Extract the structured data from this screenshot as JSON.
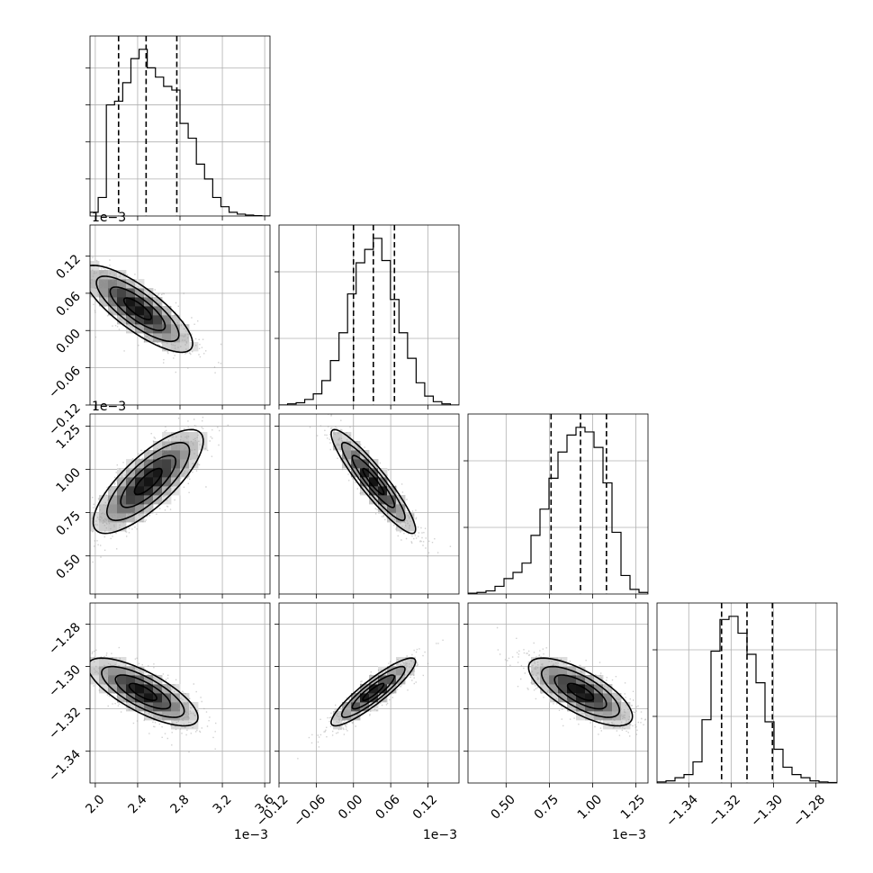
{
  "chart_data": {
    "type": "corner",
    "title": "",
    "grid": true,
    "parameters": [
      {
        "name": "",
        "range": [
          1.95,
          3.65
        ],
        "ticks": [
          2.0,
          2.4,
          2.8,
          3.2,
          3.6
        ],
        "tick_labels": [
          "2.0",
          "2.4",
          "2.8",
          "3.2",
          "3.6"
        ],
        "offset_text": "1e−3",
        "quantiles": [
          2.22,
          2.48,
          2.77
        ],
        "hist_counts": [
          2,
          10,
          60,
          62,
          72,
          85,
          90,
          80,
          75,
          70,
          68,
          50,
          42,
          28,
          20,
          10,
          5,
          2,
          1,
          0.5,
          0.2,
          0
        ]
      },
      {
        "name": "",
        "range": [
          -0.12,
          0.17
        ],
        "ticks": [
          -0.12,
          -0.06,
          0.0,
          0.06,
          0.12
        ],
        "tick_labels": [
          "−0.12",
          "−0.06",
          "0.00",
          "0.06",
          "0.12"
        ],
        "offset_text": "1e−3",
        "quantiles": [
          0.0,
          0.032,
          0.066
        ],
        "hist_counts": [
          0,
          1,
          2,
          5,
          10,
          22,
          40,
          65,
          100,
          128,
          140,
          150,
          130,
          95,
          65,
          42,
          20,
          8,
          3,
          1,
          0
        ]
      },
      {
        "name": "",
        "range": [
          0.28,
          1.32
        ],
        "ticks": [
          0.5,
          0.75,
          1.0,
          1.25
        ],
        "tick_labels": [
          "0.50",
          "0.75",
          "1.00",
          "1.25"
        ],
        "offset_text": "1e−3",
        "quantiles": [
          0.76,
          0.93,
          1.08
        ],
        "hist_counts": [
          0.5,
          1,
          2,
          5,
          10,
          14,
          20,
          38,
          55,
          75,
          92,
          103,
          108,
          105,
          95,
          72,
          40,
          12,
          3,
          1
        ]
      },
      {
        "name": "",
        "range": [
          -1.355,
          -1.27
        ],
        "ticks": [
          -1.34,
          -1.32,
          -1.3,
          -1.28
        ],
        "tick_labels": [
          "−1.34",
          "−1.32",
          "−1.30",
          "−1.28"
        ],
        "offset_text": "",
        "quantiles": [
          -1.3245,
          -1.3125,
          -1.3005
        ],
        "hist_counts": [
          1,
          2,
          5,
          8,
          20,
          60,
          125,
          155,
          158,
          142,
          122,
          95,
          58,
          32,
          15,
          8,
          5,
          2,
          1,
          0.5
        ]
      }
    ],
    "pairs": [
      {
        "x": 0,
        "y": 1,
        "center": [
          2.4,
          0.035
        ],
        "sd": [
          0.26,
          0.035
        ],
        "corr": -0.8
      },
      {
        "x": 0,
        "y": 2,
        "center": [
          2.5,
          0.93
        ],
        "sd": [
          0.26,
          0.15
        ],
        "corr": 0.78
      },
      {
        "x": 1,
        "y": 2,
        "center": [
          0.032,
          0.93
        ],
        "sd": [
          0.034,
          0.15
        ],
        "corr": -0.92
      },
      {
        "x": 0,
        "y": 3,
        "center": [
          2.45,
          -1.312
        ],
        "sd": [
          0.26,
          0.008
        ],
        "corr": -0.75
      },
      {
        "x": 1,
        "y": 3,
        "center": [
          0.032,
          -1.312
        ],
        "sd": [
          0.034,
          0.008
        ],
        "corr": 0.9
      },
      {
        "x": 2,
        "y": 3,
        "center": [
          0.93,
          -1.312
        ],
        "sd": [
          0.15,
          0.008
        ],
        "corr": -0.72
      }
    ]
  }
}
